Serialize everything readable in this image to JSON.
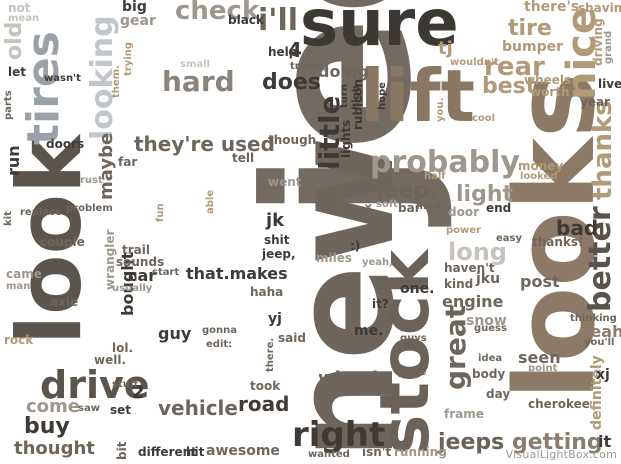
{
  "palette": {
    "dark": "#3b3733",
    "mid": "#6e655c",
    "light": "#9c8f80",
    "tan": "#b29a78",
    "pale": "#c7c2bc"
  },
  "words": [
    {
      "t": "jeep",
      "c": "#736b62"
    },
    {
      "t": "new",
      "c": "#6e665d"
    },
    {
      "t": "sure",
      "c": "#3c3834"
    },
    {
      "t": "looks",
      "c": "#8c7a66"
    },
    {
      "t": "look",
      "c": "#5c554e"
    },
    {
      "t": "stock",
      "c": "#6b6259"
    },
    {
      "t": "lift",
      "c": "#8a7763"
    },
    {
      "t": "tires",
      "c": "#9aa1a9"
    },
    {
      "t": "drive",
      "c": "#5b544d"
    },
    {
      "t": "nice",
      "c": "#b29a78"
    },
    {
      "t": "probably",
      "c": "#9f978e"
    },
    {
      "t": "right",
      "c": "#3f3a36"
    },
    {
      "t": "jeeps",
      "c": "#6b6259"
    },
    {
      "t": "getting",
      "c": "#8a7d6e"
    },
    {
      "t": "better",
      "c": "#5b534b"
    },
    {
      "t": "thanks",
      "c": "#b29a78"
    },
    {
      "t": "great",
      "c": "#6e655c"
    },
    {
      "t": "looking",
      "c": "#c2c6cb"
    },
    {
      "t": "hard",
      "c": "#8b837b"
    },
    {
      "t": "little",
      "c": "#3f3a36"
    },
    {
      "t": "maybe",
      "c": "#6e655c"
    },
    {
      "t": "they're used",
      "c": "#6e655c"
    },
    {
      "t": "does",
      "c": "#3f3a36"
    },
    {
      "t": "i'll",
      "c": "#6e655c"
    },
    {
      "t": "check",
      "c": "#9f978e"
    },
    {
      "t": "doing",
      "c": "#6e655c"
    },
    {
      "t": "rear",
      "c": "#b29a78"
    },
    {
      "t": "tire",
      "c": "#b29a78"
    },
    {
      "t": "bumper",
      "c": "#b29a78"
    },
    {
      "t": "best",
      "c": "#b29a78"
    },
    {
      "t": "light",
      "c": "#9f978e"
    },
    {
      "t": "jeep.",
      "c": "#6e655c"
    },
    {
      "t": "long",
      "c": "#c7c2bc"
    },
    {
      "t": "bad",
      "c": "#3f3a36"
    },
    {
      "t": "vehicle",
      "c": "#6e655c"
    },
    {
      "t": "road",
      "c": "#3f3a36"
    },
    {
      "t": "wheel",
      "c": "#6e655c"
    },
    {
      "t": "come",
      "c": "#9f978e"
    },
    {
      "t": "buy",
      "c": "#3f3a36"
    },
    {
      "t": "thought",
      "c": "#6e655c"
    },
    {
      "t": "old",
      "c": "#c7c2bc"
    },
    {
      "t": "couple",
      "c": "#6e655c"
    },
    {
      "t": "doors",
      "c": "#3f3a36"
    },
    {
      "t": "run",
      "c": "#3f3a36"
    },
    {
      "t": "jk",
      "c": "#3f3a36"
    },
    {
      "t": "that.makes",
      "c": "#3f3a36"
    },
    {
      "t": "bought",
      "c": "#3f3a36"
    },
    {
      "t": "car",
      "c": "#3f3a36"
    },
    {
      "t": "guy",
      "c": "#3f3a36"
    },
    {
      "t": "yj",
      "c": "#3f3a36"
    },
    {
      "t": "said",
      "c": "#6e655c"
    },
    {
      "t": "took",
      "c": "#6e655c"
    },
    {
      "t": "miles",
      "c": "#9f978e"
    },
    {
      "t": "isn't",
      "c": "#6e655c"
    },
    {
      "t": "running",
      "c": "#9f978e"
    },
    {
      "t": "engine",
      "c": "#6e655c"
    },
    {
      "t": "snow",
      "c": "#9f978e"
    },
    {
      "t": "seen",
      "c": "#6e655c"
    },
    {
      "t": "post",
      "c": "#6e655c"
    },
    {
      "t": "yeah",
      "c": "#8a7d6e"
    },
    {
      "t": "definitely",
      "c": "#b29a78"
    },
    {
      "t": "cherokee",
      "c": "#6e655c"
    },
    {
      "t": "body",
      "c": "#6e655c"
    },
    {
      "t": "day",
      "c": "#6e655c"
    },
    {
      "t": "frame",
      "c": "#9f978e"
    },
    {
      "t": "it",
      "c": "#3f3a36"
    },
    {
      "t": "me.",
      "c": "#3f3a36"
    },
    {
      "t": "one.",
      "c": "#3f3a36"
    },
    {
      "t": "thanks!",
      "c": "#6e655c"
    },
    {
      "t": "money",
      "c": "#b29a78"
    },
    {
      "t": "end",
      "c": "#3f3a36"
    },
    {
      "t": "door",
      "c": "#9f978e"
    },
    {
      "t": "big",
      "c": "#3f3a36"
    },
    {
      "t": "gear",
      "c": "#9f978e"
    },
    {
      "t": "black",
      "c": "#3f3a36"
    },
    {
      "t": "there's",
      "c": "#b29a78"
    },
    {
      "t": "shaving",
      "c": "#b29a78"
    },
    {
      "t": "tj",
      "c": "#b29a78"
    },
    {
      "t": "help",
      "c": "#3f3a36"
    },
    {
      "t": "live",
      "c": "#3f3a36"
    },
    {
      "t": "wheels",
      "c": "#b29a78"
    },
    {
      "t": "worth",
      "c": "#b29a78"
    },
    {
      "t": "year",
      "c": "#6e655c"
    },
    {
      "t": "driving",
      "c": "#b29a78"
    },
    {
      "t": "grand",
      "c": "#9f978e"
    },
    {
      "t": "rubicon",
      "c": "#3f3a36"
    },
    {
      "t": "lights",
      "c": "#3f3a36"
    },
    {
      "t": "turn",
      "c": "#3f3a36"
    },
    {
      "t": "high",
      "c": "#3f3a36"
    },
    {
      "t": "hope",
      "c": "#3f3a36"
    },
    {
      "t": "trails",
      "c": "#6e655c"
    },
    {
      "t": "4",
      "c": "#3f3a36"
    },
    {
      "t": "though.",
      "c": "#6e655c"
    },
    {
      "t": "tell",
      "c": "#6e655c"
    },
    {
      "t": "went",
      "c": "#9f978e"
    },
    {
      "t": "soft",
      "c": "#9f978e"
    },
    {
      "t": "bar",
      "c": "#6e655c"
    },
    {
      "t": "mud",
      "c": "#6e655c"
    },
    {
      "t": "half",
      "c": "#b29a78"
    },
    {
      "t": "looked",
      "c": "#b29a78"
    },
    {
      "t": "thank",
      "c": "#6e655c"
    },
    {
      "t": "wrangler",
      "c": "#9f978e"
    },
    {
      "t": "sounds",
      "c": "#6e655c"
    },
    {
      "t": "trail",
      "c": "#6e655c"
    },
    {
      "t": "start",
      "c": "#6e655c"
    },
    {
      "t": "usually",
      "c": "#9f978e"
    },
    {
      "t": "haha",
      "c": "#6e655c"
    },
    {
      "t": "gonna",
      "c": "#6e655c"
    },
    {
      "t": "edit:",
      "c": "#6e655c"
    },
    {
      "t": "there.",
      "c": "#6e655c"
    },
    {
      "t": "2",
      "c": "#3f3a36"
    },
    {
      "t": "set",
      "c": "#3f3a36"
    },
    {
      "t": "saw",
      "c": "#6e655c"
    },
    {
      "t": "stuff",
      "c": "#6e655c"
    },
    {
      "t": "lol.",
      "c": "#6e655c"
    },
    {
      "t": "well.",
      "c": "#6e655c"
    },
    {
      "t": "rock",
      "c": "#b29a78"
    },
    {
      "t": "axle",
      "c": "#6e655c"
    },
    {
      "t": "came",
      "c": "#9f978e"
    },
    {
      "t": "man",
      "c": "#9f978e"
    },
    {
      "t": "kit",
      "c": "#6e655c"
    },
    {
      "t": "replace",
      "c": "#6e655c"
    },
    {
      "t": "problem",
      "c": "#6e655c"
    },
    {
      "t": "rust",
      "c": "#9f978e"
    },
    {
      "t": "far",
      "c": "#6e655c"
    },
    {
      "t": "fun",
      "c": "#b29a78"
    },
    {
      "t": "able",
      "c": "#b29a78"
    },
    {
      "t": "shit",
      "c": "#3f3a36"
    },
    {
      "t": "jeep,",
      "c": "#3f3a36"
    },
    {
      "t": "yeah,",
      "c": "#9f978e"
    },
    {
      "t": ":)",
      "c": "#3f3a36"
    },
    {
      "t": "it?",
      "c": "#3f3a36"
    },
    {
      "t": "ones",
      "c": "#6e655c"
    },
    {
      "t": "guys",
      "c": "#6e655c"
    },
    {
      "t": "price",
      "c": "#6e655c"
    },
    {
      "t": "jku",
      "c": "#6e655c"
    },
    {
      "t": "guess",
      "c": "#6e655c"
    },
    {
      "t": "idea",
      "c": "#6e655c"
    },
    {
      "t": "kind",
      "c": "#6e655c"
    },
    {
      "t": "haven't",
      "c": "#6e655c"
    },
    {
      "t": "easy",
      "c": "#6e655c"
    },
    {
      "t": "thinking",
      "c": "#6e655c"
    },
    {
      "t": "you'll",
      "c": "#6e655c"
    },
    {
      "t": "xj",
      "c": "#3f3a36"
    },
    {
      "t": "point",
      "c": "#9f978e"
    },
    {
      "t": "different",
      "c": "#3f3a36"
    },
    {
      "t": "hit",
      "c": "#3f3a36"
    },
    {
      "t": "awesome",
      "c": "#6e655c"
    },
    {
      "t": "wanted",
      "c": "#6e655c"
    },
    {
      "t": "bit",
      "c": "#6e655c"
    },
    {
      "t": "parts",
      "c": "#6e655c"
    },
    {
      "t": "wasn't",
      "c": "#3f3a36"
    },
    {
      "t": "let",
      "c": "#3f3a36"
    },
    {
      "t": "not",
      "c": "#c7c2bc"
    },
    {
      "t": "mean",
      "c": "#c7c2bc"
    },
    {
      "t": "them.",
      "c": "#b29a78"
    },
    {
      "t": "trying",
      "c": "#b29a78"
    },
    {
      "t": "wouldn't",
      "c": "#b29a78"
    },
    {
      "t": "you.",
      "c": "#b29a78"
    },
    {
      "t": "cool",
      "c": "#b29a78"
    },
    {
      "t": "power",
      "c": "#b29a78"
    },
    {
      "t": "small",
      "c": "#c7c2bc"
    }
  ],
  "watermark": "VisualLightBox.com"
}
